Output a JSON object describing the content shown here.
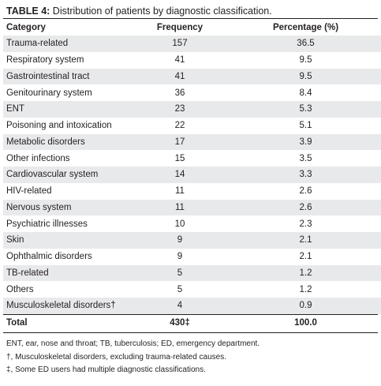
{
  "caption": {
    "label": "TABLE 4:",
    "text": " Distribution of patients by diagnostic classification."
  },
  "table": {
    "headers": [
      "Category",
      "Frequency",
      "Percentage (%)"
    ],
    "rows": [
      [
        "Trauma-related",
        "157",
        "36.5"
      ],
      [
        "Respiratory system",
        "41",
        "9.5"
      ],
      [
        "Gastrointestinal tract",
        "41",
        "9.5"
      ],
      [
        "Genitourinary system",
        "36",
        "8.4"
      ],
      [
        "ENT",
        "23",
        "5.3"
      ],
      [
        "Poisoning and intoxication",
        "22",
        "5.1"
      ],
      [
        "Metabolic disorders",
        "17",
        "3.9"
      ],
      [
        "Other infections",
        "15",
        "3.5"
      ],
      [
        "Cardiovascular system",
        "14",
        "3.3"
      ],
      [
        "HIV-related",
        "11",
        "2.6"
      ],
      [
        "Nervous system",
        "11",
        "2.6"
      ],
      [
        "Psychiatric illnesses",
        "10",
        "2.3"
      ],
      [
        "Skin",
        "9",
        "2.1"
      ],
      [
        "Ophthalmic disorders",
        "9",
        "2.1"
      ],
      [
        "TB-related",
        "5",
        "1.2"
      ],
      [
        "Others",
        "5",
        "1.2"
      ],
      [
        "Musculoskeletal disorders†",
        "4",
        "0.9"
      ]
    ],
    "total": [
      "Total",
      "430‡",
      "100.0"
    ]
  },
  "footnotes": [
    "ENT, ear, nose and throat; TB, tuberculosis; ED, emergency department.",
    "†, Musculoskeletal disorders, excluding trauma-related causes.",
    "‡, Some ED users had multiple diagnostic classifications."
  ],
  "colors": {
    "shade": "#e8e9eb",
    "text": "#231f20"
  }
}
